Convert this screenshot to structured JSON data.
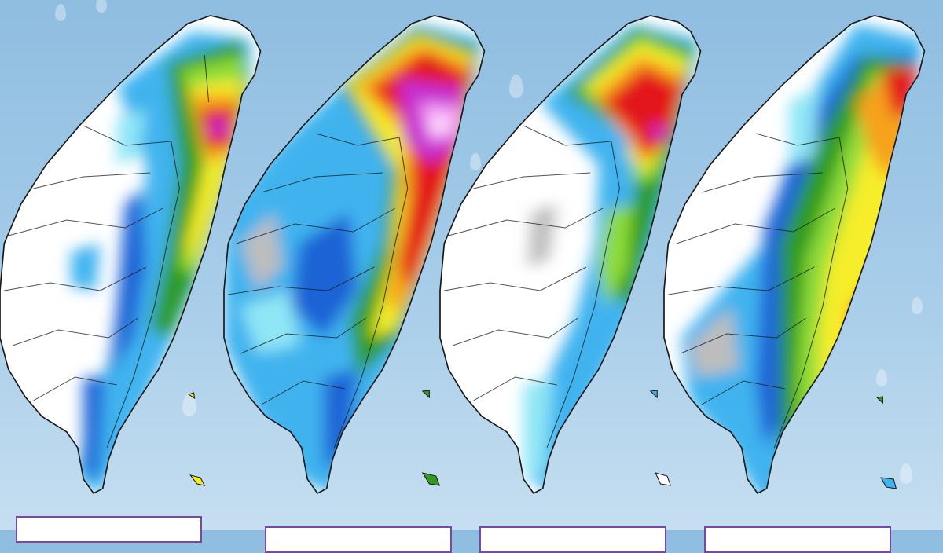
{
  "colors": {
    "background_top": "#8fbde0",
    "background_bottom": "#c6def0",
    "land_no_rain": "#ffffff",
    "low_rain_gray": "#bdbdbd",
    "cyan": "#8fe6f5",
    "light_blue": "#3fb3ef",
    "blue": "#1f63d6",
    "green": "#2e9b1f",
    "light_green": "#8fdc3a",
    "yellow": "#f6ee2a",
    "orange": "#f7a21a",
    "red": "#e3141a",
    "magenta": "#c62fd0",
    "pink": "#f49ef6",
    "border": "#1a1a1a",
    "label_box_border": "#7a47a8"
  },
  "panels": [
    {
      "id": "panel-1",
      "intensity": "northeast-heavy"
    },
    {
      "id": "panel-2",
      "intensity": "north-east-extreme"
    },
    {
      "id": "panel-3",
      "intensity": "north-heavy"
    },
    {
      "id": "panel-4",
      "intensity": "east-moderate"
    }
  ],
  "labels": [
    "",
    "",
    "",
    ""
  ]
}
